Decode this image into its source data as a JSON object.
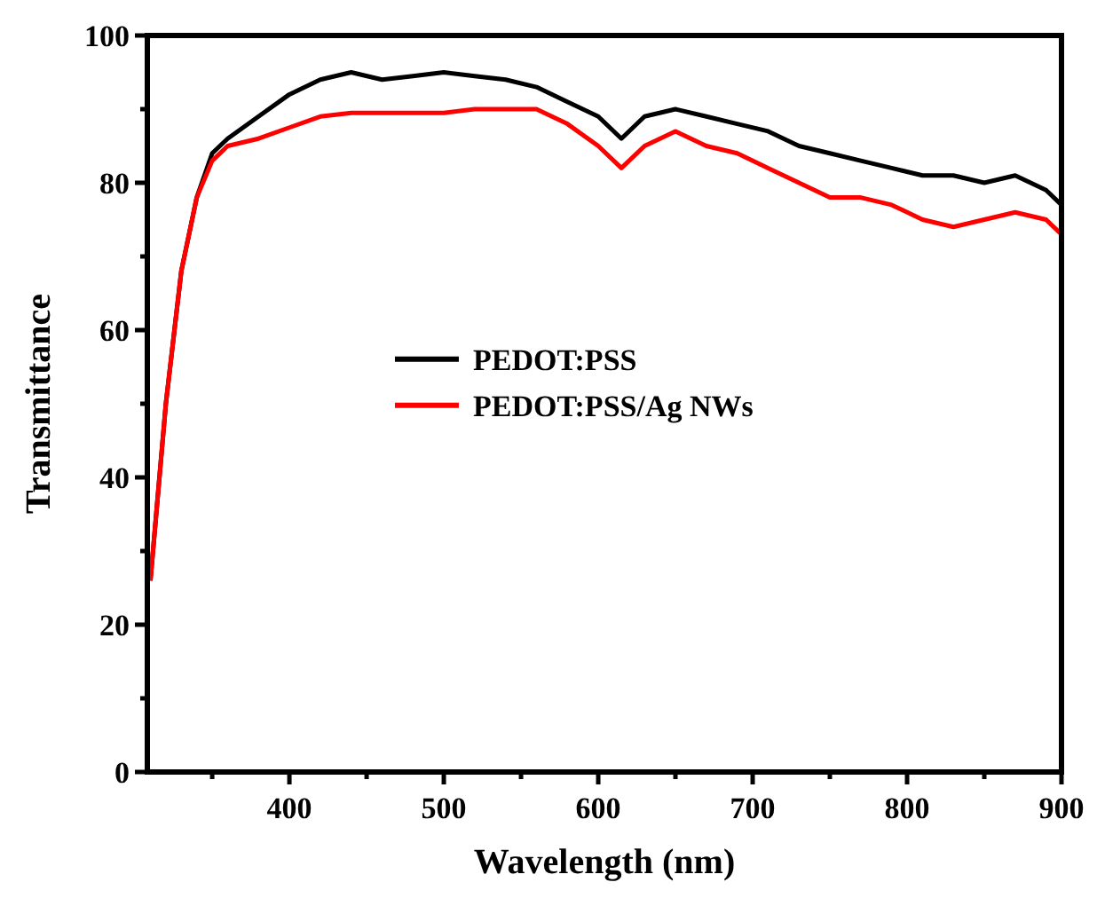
{
  "chart_data": {
    "type": "line",
    "xlabel": "Wavelength (nm)",
    "ylabel": "Transmittance",
    "xlim": [
      308,
      900
    ],
    "ylim": [
      0,
      100
    ],
    "xticks": [
      {
        "value": 350,
        "label": null
      },
      400,
      {
        "value": 450,
        "label": null
      },
      500,
      {
        "value": 550,
        "label": null
      },
      600,
      {
        "value": 650,
        "label": null
      },
      700,
      {
        "value": 750,
        "label": null
      },
      800,
      {
        "value": 850,
        "label": null
      },
      900
    ],
    "yticks": [
      0,
      {
        "value": 10,
        "label": null
      },
      20,
      {
        "value": 30,
        "label": null
      },
      40,
      {
        "value": 50,
        "label": null
      },
      60,
      {
        "value": 70,
        "label": null
      },
      80,
      {
        "value": 90,
        "label": null
      },
      100
    ],
    "x": [
      310,
      320,
      330,
      340,
      350,
      360,
      380,
      400,
      420,
      440,
      460,
      480,
      500,
      520,
      540,
      560,
      580,
      600,
      615,
      630,
      650,
      670,
      690,
      710,
      730,
      750,
      770,
      790,
      810,
      830,
      850,
      870,
      890,
      900
    ],
    "series": [
      {
        "name": "PEDOT:PSS",
        "color": "#000000",
        "values": [
          26,
          50,
          68,
          78,
          84,
          86,
          89,
          92,
          94,
          95,
          94,
          94.5,
          95,
          94.5,
          94,
          93,
          91,
          89,
          86,
          89,
          90,
          89,
          88,
          87,
          85,
          84,
          83,
          82,
          81,
          81,
          80,
          81,
          79,
          77
        ]
      },
      {
        "name": "PEDOT:PSS/Ag NWs",
        "color": "#ff0000",
        "values": [
          26,
          50,
          68,
          78,
          83,
          85,
          86,
          87.5,
          89,
          89.5,
          89.5,
          89.5,
          89.5,
          90,
          90,
          90,
          88,
          85,
          82,
          85,
          87,
          85,
          84,
          82,
          80,
          78,
          78,
          77,
          75,
          74,
          75,
          76,
          75,
          73
        ]
      }
    ],
    "legend": "center",
    "line_style": "solid",
    "grid": false
  }
}
